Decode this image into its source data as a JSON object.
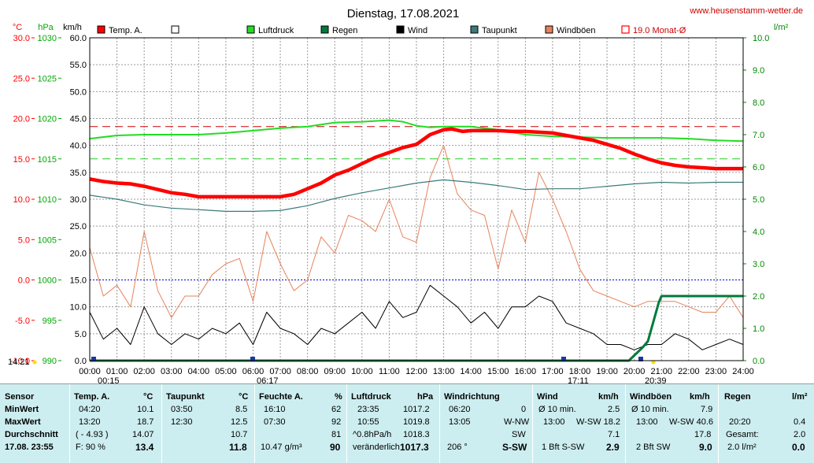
{
  "title": "Dienstag, 17.08.2021",
  "website": "www.heusenstamm-wetter.de",
  "units": {
    "temp": "°C",
    "pressure": "hPa",
    "wind": "km/h",
    "rain": "l/m²"
  },
  "legend": [
    {
      "label": "Temp. A.",
      "color": "#ff0000",
      "style": "box"
    },
    {
      "label": "",
      "color": "#ffffff",
      "style": "box"
    },
    {
      "label": "Luftdruck",
      "color": "#22dd22",
      "style": "box"
    },
    {
      "label": "Regen",
      "color": "#007a3a",
      "style": "box"
    },
    {
      "label": "Wind",
      "color": "#000000",
      "style": "box"
    },
    {
      "label": "Taupunkt",
      "color": "#3a7a7a",
      "style": "box"
    },
    {
      "label": "Windböen",
      "color": "#e6825a",
      "style": "box"
    },
    {
      "label": "19.0 Monat-Ø",
      "color": "#ff0000",
      "style": "outline"
    }
  ],
  "marks": {
    "left1": "14:21",
    "b1": "00:15",
    "b2": "06:17",
    "b3": "17:11",
    "b4": "20:39"
  },
  "chart_data": {
    "type": "line",
    "x_unit": "time",
    "x_ticks": [
      "00:00",
      "01:00",
      "02:00",
      "03:00",
      "04:00",
      "05:00",
      "06:00",
      "07:00",
      "08:00",
      "09:00",
      "10:00",
      "11:00",
      "12:00",
      "13:00",
      "14:00",
      "15:00",
      "16:00",
      "17:00",
      "18:00",
      "19:00",
      "20:00",
      "21:00",
      "22:00",
      "23:00",
      "24:00"
    ],
    "y_axes": {
      "temp_ticks": [
        "30.0",
        "25.0",
        "20.0",
        "15.0",
        "10.0",
        "5.0",
        "0.0",
        "-5.0",
        "-10.0"
      ],
      "pressure_ticks": [
        "1030",
        "1025",
        "1020",
        "1015",
        "1010",
        "1005",
        "1000",
        "995",
        "990"
      ],
      "wind_ticks": [
        "60.0",
        "55.0",
        "50.0",
        "45.0",
        "40.0",
        "35.0",
        "30.0",
        "25.0",
        "20.0",
        "15.0",
        "10.0",
        "5.0",
        "0.0"
      ],
      "rain_ticks": [
        "10.0",
        "9.0",
        "8.0",
        "7.0",
        "6.0",
        "5.0",
        "4.0",
        "3.0",
        "2.0",
        "1.0",
        "0.0"
      ],
      "temp_range": [
        -10,
        30
      ],
      "pressure_range": [
        990,
        1030
      ],
      "wind_range": [
        0,
        60
      ],
      "rain_range": [
        0,
        10
      ]
    },
    "ref_lines": {
      "monthly_avg_temp": 19.0,
      "pressure_ref": 1015,
      "zero_temp": 0.0
    },
    "series": [
      {
        "name": "Temp. A.",
        "axis": "temp",
        "color": "#ff0000",
        "x": [
          0,
          0.5,
          1,
          1.5,
          2,
          2.5,
          3,
          3.5,
          4,
          4.5,
          5,
          5.5,
          6,
          6.5,
          7,
          7.5,
          8,
          8.5,
          9,
          9.5,
          10,
          10.5,
          11,
          11.5,
          12,
          12.5,
          13,
          13.3,
          13.7,
          14,
          14.5,
          15,
          15.5,
          16,
          16.5,
          17,
          17.5,
          18,
          18.5,
          19,
          19.5,
          20,
          20.5,
          21,
          21.5,
          22,
          22.5,
          23,
          23.5,
          24
        ],
        "values": [
          12.5,
          12.2,
          12.0,
          11.9,
          11.6,
          11.2,
          10.8,
          10.6,
          10.3,
          10.3,
          10.3,
          10.3,
          10.3,
          10.3,
          10.3,
          10.6,
          11.3,
          12.0,
          13.0,
          13.6,
          14.4,
          15.2,
          15.8,
          16.4,
          16.8,
          18.0,
          18.6,
          18.7,
          18.4,
          18.5,
          18.5,
          18.5,
          18.4,
          18.4,
          18.3,
          18.2,
          17.9,
          17.6,
          17.3,
          16.8,
          16.3,
          15.6,
          15.0,
          14.5,
          14.2,
          14.0,
          13.9,
          13.8,
          13.8,
          13.8
        ]
      },
      {
        "name": "Luftdruck",
        "axis": "pressure",
        "color": "#22dd22",
        "x": [
          0,
          1,
          2,
          3,
          4,
          5,
          6,
          7,
          8,
          9,
          10,
          11,
          11.5,
          12,
          12.5,
          13,
          14,
          15,
          16,
          17,
          18,
          19,
          20,
          21,
          22,
          23,
          24
        ],
        "values": [
          1017.5,
          1017.9,
          1018.0,
          1018.0,
          1018.0,
          1018.2,
          1018.5,
          1018.8,
          1019.0,
          1019.5,
          1019.6,
          1019.8,
          1019.6,
          1019.1,
          1018.9,
          1019.0,
          1019.0,
          1018.6,
          1018.0,
          1017.8,
          1017.7,
          1017.6,
          1017.6,
          1017.6,
          1017.5,
          1017.3,
          1017.2
        ]
      },
      {
        "name": "Taupunkt",
        "axis": "temp",
        "color": "#3a7a7a",
        "x": [
          0,
          1,
          2,
          3,
          4,
          5,
          6,
          7,
          8,
          9,
          10,
          11,
          12,
          13,
          14,
          15,
          16,
          17,
          18,
          19,
          20,
          21,
          22,
          23,
          24
        ],
        "values": [
          10.5,
          10.0,
          9.3,
          8.9,
          8.7,
          8.5,
          8.5,
          8.6,
          9.2,
          10.1,
          10.8,
          11.4,
          12.0,
          12.4,
          12.1,
          11.7,
          11.2,
          11.3,
          11.3,
          11.6,
          11.9,
          12.1,
          12.0,
          12.1,
          12.1
        ]
      },
      {
        "name": "Wind",
        "axis": "wind",
        "color": "#000000",
        "x": [
          0,
          0.5,
          1,
          1.5,
          2,
          2.5,
          3,
          3.5,
          4,
          4.5,
          5,
          5.5,
          6,
          6.5,
          7,
          7.5,
          8,
          8.5,
          9,
          9.5,
          10,
          10.5,
          11,
          11.5,
          12,
          12.5,
          13,
          13.5,
          14,
          14.5,
          15,
          15.5,
          16,
          16.5,
          17,
          17.5,
          18,
          18.5,
          19,
          19.5,
          20,
          20.5,
          21,
          21.5,
          22,
          22.5,
          23,
          23.5,
          24
        ],
        "values": [
          9,
          4,
          6,
          3,
          10,
          5,
          3,
          5,
          4,
          6,
          5,
          7,
          3,
          9,
          6,
          5,
          3,
          6,
          5,
          7,
          9,
          6,
          11,
          8,
          9,
          14,
          12,
          10,
          7,
          9,
          6,
          10,
          10,
          12,
          11,
          7,
          6,
          5,
          3,
          3,
          2,
          3,
          3,
          5,
          4,
          2,
          3,
          4,
          3
        ]
      },
      {
        "name": "Windböen",
        "axis": "wind",
        "color": "#e6825a",
        "x": [
          0,
          0.5,
          1,
          1.5,
          2,
          2.5,
          3,
          3.5,
          4,
          4.5,
          5,
          5.5,
          6,
          6.5,
          7,
          7.5,
          8,
          8.5,
          9,
          9.5,
          10,
          10.5,
          11,
          11.5,
          12,
          12.5,
          13,
          13.5,
          14,
          14.5,
          15,
          15.5,
          16,
          16.5,
          17,
          17.5,
          18,
          18.5,
          19,
          19.5,
          20,
          20.5,
          21,
          21.5,
          22,
          22.5,
          23,
          23.5,
          24
        ],
        "values": [
          21,
          12,
          14,
          10,
          24,
          13,
          8,
          12,
          12,
          16,
          18,
          19,
          11,
          24,
          18,
          13,
          15,
          23,
          20,
          27,
          26,
          24,
          30,
          23,
          22,
          34,
          40,
          31,
          28,
          27,
          17,
          28,
          22,
          35,
          30,
          24,
          17,
          13,
          12,
          11,
          10,
          11,
          11,
          11,
          10,
          9,
          9,
          12,
          8
        ]
      },
      {
        "name": "Regen",
        "axis": "rain",
        "color": "#007a3a",
        "x": [
          0,
          19.8,
          20.3,
          20.5,
          20.9,
          21,
          24
        ],
        "values": [
          0,
          0,
          0.4,
          0.6,
          1.8,
          2.0,
          2.0
        ]
      }
    ]
  },
  "stats": {
    "date": "17.08. 23:55",
    "time_label": "14:21",
    "sensor": {
      "header": "Sensor",
      "rows": [
        "MinWert",
        "MaxWert",
        "Durchschnitt"
      ]
    },
    "temp": {
      "header": "Temp. A.",
      "unit": "°C",
      "min_time": "04:20",
      "min": "10.1",
      "max_time": "13:20",
      "max": "18.7",
      "avg_note": "( - 4.93 )",
      "avg": "14.07",
      "cur_note": "F: 90 %",
      "cur": "13.4"
    },
    "dew": {
      "header": "Taupunkt",
      "unit": "°C",
      "min_time": "03:50",
      "min": "8.5",
      "max_time": "12:30",
      "max": "12.5",
      "avg": "10.7",
      "cur": "11.8"
    },
    "hum": {
      "header": "Feuchte A.",
      "unit": "%",
      "min_time": "16:10",
      "min": "62",
      "max_time": "07:30",
      "max": "92",
      "avg": "81",
      "cur_note": "10.47 g/m³",
      "cur": "90"
    },
    "press": {
      "header": "Luftdruck",
      "unit": "hPa",
      "min_time": "23:35",
      "min": "1017.2",
      "max_time": "10:55",
      "max": "1019.8",
      "trend": "^0.8hPa/h",
      "avg": "1018.3",
      "cur_note": "veränderlich",
      "cur": "1017.3"
    },
    "dir": {
      "header": "Windrichtung",
      "min_time": "06:20",
      "min": "0",
      "max_time": "13:05",
      "max": "W-NW",
      "avg": "SW",
      "cur_note": "206 °",
      "cur": "S-SW"
    },
    "wind": {
      "header": "Wind",
      "unit": "km/h",
      "r1_note": "Ø 10 min.",
      "r1": "2.5",
      "r2_time": "13:00",
      "r2_note": "W-SW 18.2",
      "avg": "7.1",
      "cur_note": "1 Bft S-SW",
      "cur": "2.9"
    },
    "gust": {
      "header": "Windböen",
      "unit": "km/h",
      "r1_note": "Ø 10 min.",
      "r1": "7.9",
      "r2_time": "13:00",
      "r2_note": "W-SW 40.6",
      "avg": "17.8",
      "cur_note": "2 Bft SW",
      "cur": "9.0"
    },
    "rain": {
      "header": "Regen",
      "unit": "l/m²",
      "r1_time": "20:20",
      "r1": "0.4",
      "r2_note": "Gesamt:",
      "r2": "2.0",
      "cur_note": "2.0 l/m²",
      "cur": "0.0"
    }
  }
}
